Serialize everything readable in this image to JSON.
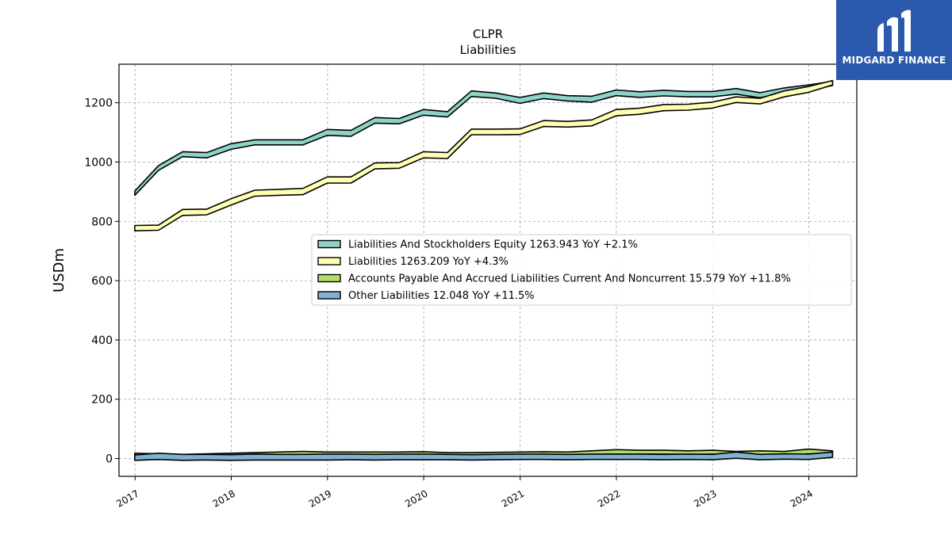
{
  "brand": {
    "name": "MIDGARD FINANCE",
    "logo_icon": "stylized-m-icon",
    "background": "#2a59ad"
  },
  "chart_data": {
    "type": "area",
    "title": "CLPR",
    "subtitle": "Liabilities",
    "xlabel": "",
    "ylabel": "USDm",
    "xlim": [
      "2016-11-01",
      "2024-07-01"
    ],
    "ylim": [
      -60,
      1330
    ],
    "yticks": [
      0,
      200,
      400,
      600,
      800,
      1000,
      1200
    ],
    "xticks": [
      {
        "label": "2017",
        "date": "2017-01-01"
      },
      {
        "label": "2018",
        "date": "2018-01-01"
      },
      {
        "label": "2019",
        "date": "2019-01-01"
      },
      {
        "label": "2020",
        "date": "2020-01-01"
      },
      {
        "label": "2021",
        "date": "2021-01-01"
      },
      {
        "label": "2022",
        "date": "2022-01-01"
      },
      {
        "label": "2023",
        "date": "2023-01-01"
      },
      {
        "label": "2024",
        "date": "2024-01-01"
      }
    ],
    "grid": true,
    "legend_position": "center-right",
    "x": [
      "2016-12-31",
      "2017-03-31",
      "2017-06-30",
      "2017-09-30",
      "2017-12-31",
      "2018-03-31",
      "2018-06-30",
      "2018-09-30",
      "2018-12-31",
      "2019-03-31",
      "2019-06-30",
      "2019-09-30",
      "2019-12-31",
      "2020-03-31",
      "2020-06-30",
      "2020-09-30",
      "2020-12-31",
      "2021-03-31",
      "2021-06-30",
      "2021-09-30",
      "2021-12-31",
      "2022-03-31",
      "2022-06-30",
      "2022-09-30",
      "2022-12-31",
      "2023-03-31",
      "2023-06-30",
      "2023-09-30",
      "2023-12-31",
      "2024-03-31"
    ],
    "series": [
      {
        "name": "Liabilities And Stockholders Equity",
        "legend_label": "Liabilities And Stockholders Equity  1263.943 YoY +2.1%",
        "color": "#8dd3c7",
        "upper": [
          902,
          988,
          1035,
          1032,
          1062,
          1075,
          1075,
          1075,
          1110,
          1107,
          1150,
          1147,
          1177,
          1170,
          1240,
          1233,
          1218,
          1233,
          1224,
          1222,
          1243,
          1237,
          1242,
          1238,
          1238,
          1248,
          1234,
          1250,
          1260,
          1272
        ],
        "lower": [
          888,
          972,
          1018,
          1014,
          1043,
          1058,
          1058,
          1058,
          1090,
          1087,
          1131,
          1129,
          1158,
          1152,
          1221,
          1215,
          1198,
          1214,
          1206,
          1202,
          1224,
          1218,
          1223,
          1220,
          1220,
          1229,
          1217,
          1233,
          1244,
          1258
        ]
      },
      {
        "name": "Liabilities",
        "legend_label": "Liabilities  1263.209 YoY +4.3%",
        "color": "#ffffb3",
        "upper": [
          786,
          787,
          840,
          841,
          876,
          905,
          908,
          911,
          950,
          950,
          997,
          998,
          1035,
          1032,
          1111,
          1111,
          1112,
          1140,
          1137,
          1142,
          1177,
          1182,
          1194,
          1195,
          1202,
          1220,
          1215,
          1240,
          1255,
          1275
        ],
        "lower": [
          768,
          770,
          820,
          822,
          855,
          885,
          888,
          890,
          929,
          929,
          977,
          979,
          1014,
          1012,
          1092,
          1092,
          1093,
          1120,
          1118,
          1122,
          1156,
          1161,
          1173,
          1175,
          1182,
          1201,
          1196,
          1220,
          1235,
          1260
        ]
      },
      {
        "name": "Accounts Payable And Accrued Liabilities Current And Noncurrent",
        "legend_label": "Accounts Payable And Accrued Liabilities Current And Noncurrent  15.579 YoY +11.8%",
        "color": "#b3de69",
        "upper": [
          18,
          16,
          14,
          16,
          18,
          20,
          22,
          24,
          22,
          22,
          22,
          22,
          23,
          20,
          20,
          21,
          22,
          23,
          22,
          26,
          30,
          28,
          28,
          26,
          28,
          24,
          26,
          24,
          32,
          26
        ],
        "lower": [
          10,
          9,
          8,
          9,
          10,
          11,
          12,
          13,
          12,
          12,
          12,
          12,
          12,
          11,
          11,
          11,
          12,
          12,
          12,
          14,
          15,
          15,
          15,
          14,
          15,
          13,
          14,
          13,
          16,
          14
        ]
      },
      {
        "name": "Other Liabilities",
        "legend_label": "Other Liabilities  12.048 YoY +11.5%",
        "color": "#80b1d3",
        "upper": [
          12,
          18,
          14,
          14,
          13,
          15,
          14,
          14,
          15,
          15,
          14,
          15,
          15,
          14,
          13,
          14,
          15,
          15,
          14,
          15,
          15,
          15,
          14,
          15,
          14,
          22,
          14,
          16,
          15,
          22
        ],
        "lower": [
          -6,
          -3,
          -6,
          -5,
          -6,
          -5,
          -5,
          -5,
          -5,
          -4,
          -5,
          -4,
          -4,
          -4,
          -5,
          -4,
          -3,
          -3,
          -4,
          -3,
          -3,
          -3,
          -4,
          -3,
          -4,
          1,
          -4,
          -2,
          -3,
          4
        ]
      }
    ]
  }
}
